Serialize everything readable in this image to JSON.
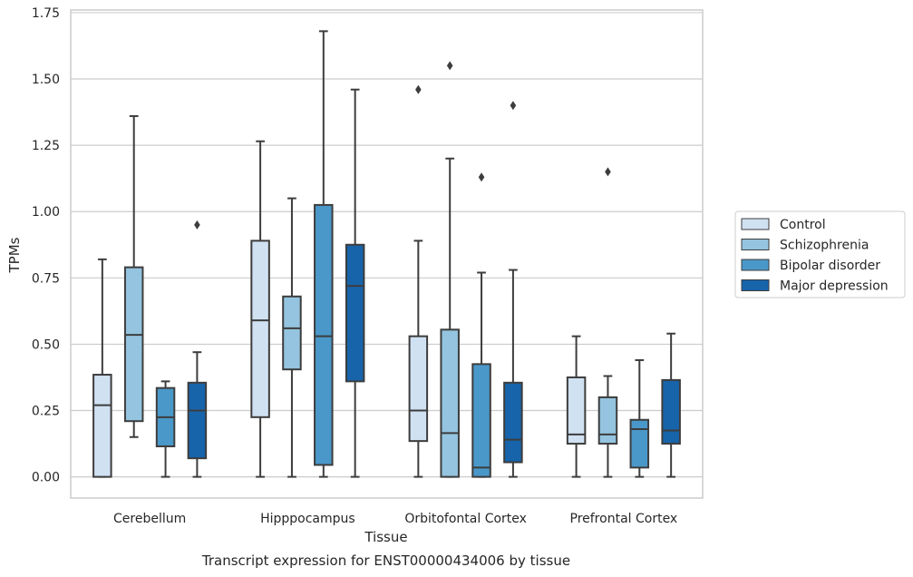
{
  "caption": "Transcript expression for ENST00000434006 by tissue",
  "chart_data": {
    "type": "box",
    "xlabel": "Tissue",
    "ylabel": "TPMs",
    "ylim": [
      -0.08,
      1.76
    ],
    "yticks": [
      "0.00",
      "0.25",
      "0.50",
      "0.75",
      "1.00",
      "1.25",
      "1.50",
      "1.75"
    ],
    "ytick_values": [
      0,
      0.25,
      0.5,
      0.75,
      1.0,
      1.25,
      1.5,
      1.75
    ],
    "grid": "horizontal",
    "legend_position": "right",
    "categories": [
      "Cerebellum",
      "Hipppocampus",
      "Orbitofontal Cortex",
      "Prefrontal Cortex"
    ],
    "series": [
      {
        "name": "Control",
        "color": "#d0e1f2",
        "boxes": [
          {
            "low": 0.0,
            "q1": 0.0,
            "median": 0.27,
            "q3": 0.385,
            "high": 0.82,
            "outliers": []
          },
          {
            "low": 0.0,
            "q1": 0.225,
            "median": 0.59,
            "q3": 0.89,
            "high": 1.265,
            "outliers": []
          },
          {
            "low": 0.0,
            "q1": 0.135,
            "median": 0.25,
            "q3": 0.53,
            "high": 0.89,
            "outliers": [
              1.46
            ]
          },
          {
            "low": 0.0,
            "q1": 0.125,
            "median": 0.16,
            "q3": 0.375,
            "high": 0.53,
            "outliers": []
          }
        ]
      },
      {
        "name": "Schizophrenia",
        "color": "#94c4df",
        "boxes": [
          {
            "low": 0.15,
            "q1": 0.21,
            "median": 0.535,
            "q3": 0.79,
            "high": 1.36,
            "outliers": []
          },
          {
            "low": 0.0,
            "q1": 0.405,
            "median": 0.56,
            "q3": 0.68,
            "high": 1.05,
            "outliers": []
          },
          {
            "low": 0.0,
            "q1": 0.0,
            "median": 0.165,
            "q3": 0.555,
            "high": 1.2,
            "outliers": [
              1.55
            ]
          },
          {
            "low": 0.0,
            "q1": 0.125,
            "median": 0.16,
            "q3": 0.3,
            "high": 0.38,
            "outliers": [
              1.15
            ]
          }
        ]
      },
      {
        "name": "Bipolar disorder",
        "color": "#4a98c9",
        "boxes": [
          {
            "low": 0.0,
            "q1": 0.115,
            "median": 0.225,
            "q3": 0.335,
            "high": 0.36,
            "outliers": []
          },
          {
            "low": 0.0,
            "q1": 0.045,
            "median": 0.53,
            "q3": 1.025,
            "high": 1.68,
            "outliers": []
          },
          {
            "low": 0.0,
            "q1": 0.0,
            "median": 0.035,
            "q3": 0.425,
            "high": 0.77,
            "outliers": [
              1.13
            ]
          },
          {
            "low": 0.0,
            "q1": 0.035,
            "median": 0.18,
            "q3": 0.215,
            "high": 0.44,
            "outliers": []
          }
        ]
      },
      {
        "name": "Major depression",
        "color": "#1764ab",
        "boxes": [
          {
            "low": 0.0,
            "q1": 0.07,
            "median": 0.25,
            "q3": 0.355,
            "high": 0.47,
            "outliers": [
              0.95
            ]
          },
          {
            "low": 0.0,
            "q1": 0.36,
            "median": 0.72,
            "q3": 0.875,
            "high": 1.46,
            "outliers": []
          },
          {
            "low": 0.0,
            "q1": 0.055,
            "median": 0.14,
            "q3": 0.355,
            "high": 0.78,
            "outliers": [
              1.4
            ]
          },
          {
            "low": 0.0,
            "q1": 0.125,
            "median": 0.175,
            "q3": 0.365,
            "high": 0.54,
            "outliers": []
          }
        ]
      }
    ]
  }
}
